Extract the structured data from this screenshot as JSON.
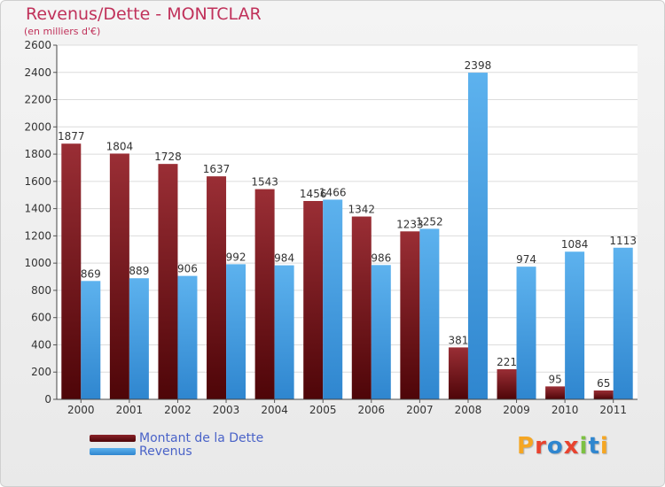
{
  "title": "Revenus/Dette - MONTCLAR",
  "subtitle": "(en milliers d'€)",
  "logo": "Proxiti",
  "chart_data": {
    "type": "bar",
    "categories": [
      "2000",
      "2001",
      "2002",
      "2003",
      "2004",
      "2005",
      "2006",
      "2007",
      "2008",
      "2009",
      "2010",
      "2011"
    ],
    "series": [
      {
        "name": "Montant de la Dette",
        "color": "#7a1a1f",
        "values": [
          1877,
          1804,
          1728,
          1637,
          1543,
          1456,
          1342,
          1233,
          381,
          221,
          95,
          65
        ]
      },
      {
        "name": "Revenus",
        "color": "#4a9fe0",
        "values": [
          869,
          889,
          906,
          992,
          984,
          1466,
          986,
          1252,
          2398,
          974,
          1084,
          1113
        ]
      }
    ],
    "ylim": [
      0,
      2600
    ],
    "yticks": [
      0,
      200,
      400,
      600,
      800,
      1000,
      1200,
      1400,
      1600,
      1800,
      2000,
      2200,
      2400,
      2600
    ],
    "grid": true,
    "legend_position": "bottom-left"
  }
}
